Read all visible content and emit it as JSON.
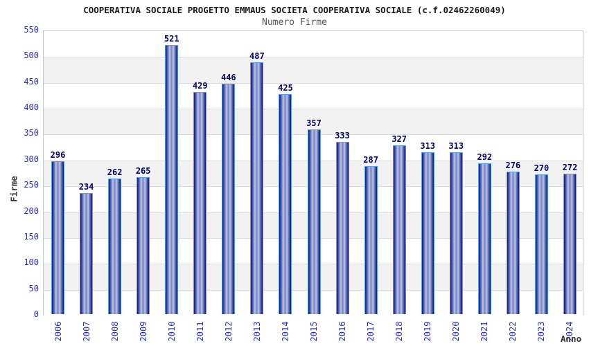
{
  "header": {
    "title": "COOPERATIVA SOCIALE PROGETTO EMMAUS SOCIETA COOPERATIVA SOCIALE (c.f.02462260049)",
    "subtitle": "Numero Firme"
  },
  "axes": {
    "ylabel": "Firme",
    "xlabel": "Anno"
  },
  "chart_data": {
    "type": "bar",
    "title": "COOPERATIVA SOCIALE PROGETTO EMMAUS SOCIETA COOPERATIVA SOCIALE (c.f.02462260049)",
    "subtitle": "Numero Firme",
    "xlabel": "Anno",
    "ylabel": "Firme",
    "categories": [
      "2006",
      "2007",
      "2008",
      "2009",
      "2010",
      "2011",
      "2012",
      "2013",
      "2014",
      "2015",
      "2016",
      "2017",
      "2018",
      "2019",
      "2020",
      "2021",
      "2022",
      "2023",
      "2024"
    ],
    "values": [
      296,
      234,
      262,
      265,
      521,
      429,
      446,
      487,
      425,
      357,
      333,
      287,
      327,
      313,
      313,
      292,
      276,
      270,
      272
    ],
    "ylim": [
      0,
      550
    ],
    "ytick_step": 50,
    "grid": "horizontal gridlines with alternating white/gray bands",
    "legend_position": "none",
    "bar_labels_shown": true,
    "colors": {
      "bar_dark": "#10187a",
      "bar_mid": "#7381c0",
      "bar_light": "#bcc5e6",
      "bar_border": "#55a0ee",
      "value_label": "#000070",
      "tick_label": "#2b2bd6",
      "title": "#1a1a1a",
      "subtitle": "#555555",
      "axis_label": "#333333",
      "band_gray": "#f2f2f2",
      "gridline": "#dcdcdc"
    }
  }
}
